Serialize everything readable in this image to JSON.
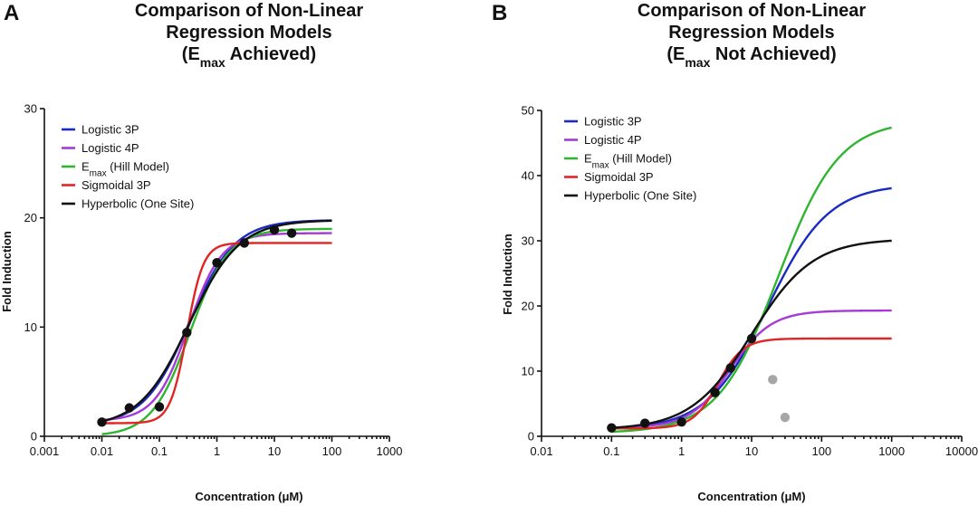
{
  "chart_data": [
    {
      "panel_label": "A",
      "type": "scatter",
      "title_lines": [
        "Comparison of  Non-Linear",
        "Regression Models"
      ],
      "title_sub": {
        "open": "(E",
        "sub": "max",
        "close": " Achieved)"
      },
      "xlabel": "Concentration (μM)",
      "ylabel": "Fold Induction",
      "x_scale": "log",
      "xlim": [
        0.001,
        1000
      ],
      "ylim": [
        0,
        30
      ],
      "x_ticks": [
        0.001,
        0.01,
        0.1,
        1,
        10,
        100,
        1000
      ],
      "x_tick_labels": [
        "0.001",
        "0.01",
        "0.1",
        "1",
        "10",
        "100",
        "1000"
      ],
      "y_ticks": [
        0,
        10,
        20,
        30
      ],
      "y_tick_labels": [
        "0",
        "10",
        "20",
        "30"
      ],
      "legend_position": "top-left",
      "series": [
        {
          "name": "Logistic 3P",
          "color": "#1a2bc0",
          "model": "hill",
          "params": {
            "bottom": 1.0,
            "top": 19.8,
            "ec50": 0.33,
            "hill": 1.1
          }
        },
        {
          "name": "Logistic 4P",
          "color": "#a53ad6",
          "model": "hill",
          "params": {
            "bottom": 1.4,
            "top": 18.6,
            "ec50": 0.32,
            "hill": 1.5
          }
        },
        {
          "name": "Emax (Hill Model)",
          "name_parts": {
            "main": "E",
            "sub": "max",
            "rest": " (Hill Model)"
          },
          "color": "#2fb52f",
          "model": "hill",
          "params": {
            "bottom": 0.0,
            "top": 19.0,
            "ec50": 0.34,
            "hill": 1.3
          }
        },
        {
          "name": "Sigmoidal 3P",
          "color": "#e02525",
          "model": "hill",
          "params": {
            "bottom": 1.2,
            "top": 17.7,
            "ec50": 0.3,
            "hill": 3.0
          }
        },
        {
          "name": "Hyperbolic (One Site)",
          "color": "#111111",
          "model": "hill",
          "params": {
            "bottom": 0.8,
            "top": 19.8,
            "ec50": 0.33,
            "hill": 1.0
          }
        }
      ],
      "points": [
        {
          "x": 0.01,
          "y": 1.3,
          "color": "#111111"
        },
        {
          "x": 0.03,
          "y": 2.6,
          "color": "#111111"
        },
        {
          "x": 0.1,
          "y": 2.7,
          "color": "#111111"
        },
        {
          "x": 0.3,
          "y": 9.5,
          "color": "#111111"
        },
        {
          "x": 1,
          "y": 15.9,
          "color": "#111111"
        },
        {
          "x": 3,
          "y": 17.7,
          "color": "#111111"
        },
        {
          "x": 10,
          "y": 18.9,
          "color": "#111111"
        },
        {
          "x": 20,
          "y": 18.6,
          "color": "#111111"
        }
      ]
    },
    {
      "panel_label": "B",
      "type": "scatter",
      "title_lines": [
        "Comparison of  Non-Linear",
        "Regression Models"
      ],
      "title_sub": {
        "open": "(E",
        "sub": "max",
        "close": " Not Achieved)"
      },
      "xlabel": "Concentration (μM)",
      "ylabel": "Fold Induction",
      "x_scale": "log",
      "xlim": [
        0.01,
        10000
      ],
      "ylim": [
        0,
        50
      ],
      "x_ticks": [
        0.01,
        0.1,
        1,
        10,
        100,
        1000,
        10000
      ],
      "x_tick_labels": [
        "0.01",
        "0.1",
        "1",
        "10",
        "100",
        "1000",
        "10000"
      ],
      "y_ticks": [
        0,
        10,
        20,
        30,
        40,
        50
      ],
      "y_tick_labels": [
        "0",
        "10",
        "20",
        "30",
        "40",
        "50"
      ],
      "legend_position": "top-left",
      "series": [
        {
          "name": "Logistic 3P",
          "color": "#1a2bc0",
          "model": "hill",
          "params": {
            "bottom": 1.0,
            "top": 38.7,
            "ec50": 17,
            "hill": 1.0
          }
        },
        {
          "name": "Logistic 4P",
          "color": "#a53ad6",
          "model": "hill",
          "params": {
            "bottom": 1.3,
            "top": 19.3,
            "ec50": 5.0,
            "hill": 1.5
          }
        },
        {
          "name": "Emax (Hill Model)",
          "name_parts": {
            "main": "E",
            "sub": "max",
            "rest": " (Hill Model)"
          },
          "color": "#2fb52f",
          "model": "hill",
          "params": {
            "bottom": 0.5,
            "top": 48.5,
            "ec50": 24,
            "hill": 1.0
          }
        },
        {
          "name": "Sigmoidal 3P",
          "color": "#e02525",
          "model": "hill",
          "params": {
            "bottom": 1.2,
            "top": 15.0,
            "ec50": 3.3,
            "hill": 2.4
          }
        },
        {
          "name": "Hyperbolic (One Site)",
          "color": "#111111",
          "model": "hill",
          "params": {
            "bottom": 1.0,
            "top": 30.3,
            "ec50": 10,
            "hill": 1.0
          }
        }
      ],
      "points": [
        {
          "x": 0.1,
          "y": 1.3,
          "color": "#111111"
        },
        {
          "x": 0.3,
          "y": 2.0,
          "color": "#111111"
        },
        {
          "x": 1,
          "y": 2.2,
          "color": "#111111"
        },
        {
          "x": 3,
          "y": 6.7,
          "color": "#111111"
        },
        {
          "x": 5,
          "y": 10.5,
          "color": "#111111"
        },
        {
          "x": 10,
          "y": 15.0,
          "color": "#111111"
        },
        {
          "x": 20,
          "y": 8.7,
          "color": "#a6a6a6"
        },
        {
          "x": 30,
          "y": 2.9,
          "color": "#a6a6a6"
        }
      ]
    }
  ]
}
